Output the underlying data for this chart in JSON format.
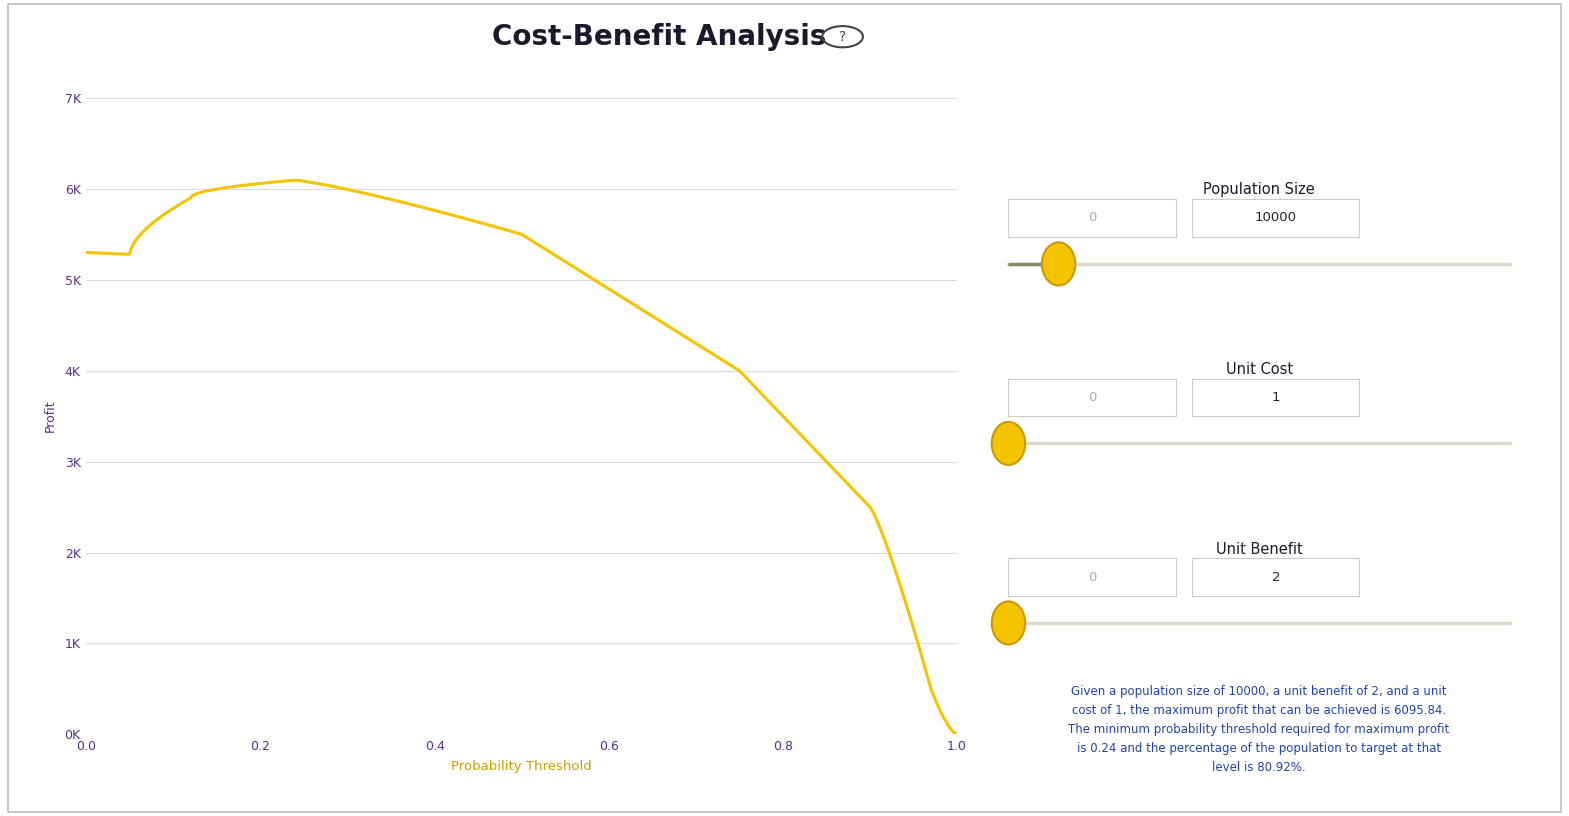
{
  "title": "Cost-Benefit Analysis",
  "title_fontsize": 20,
  "title_fontweight": "bold",
  "title_color": "#1a1a2e",
  "background_color": "#ffffff",
  "plot_bg_color": "#ffffff",
  "line_color": "#f5c400",
  "line_width": 2.2,
  "xlabel": "Probability Threshold",
  "ylabel": "Profit",
  "xlabel_color": "#c8a000",
  "ylabel_color": "#5b2d8e",
  "tick_color": "#5b2d8e",
  "tick_fontsize": 9,
  "grid_color": "#d8d8d8",
  "xlim": [
    0.0,
    1.0
  ],
  "ylim": [
    0,
    7000
  ],
  "yticks": [
    0,
    1000,
    2000,
    3000,
    4000,
    5000,
    6000,
    7000
  ],
  "ytick_labels": [
    "0K",
    "1K",
    "2K",
    "3K",
    "4K",
    "5K",
    "6K",
    "7K"
  ],
  "xticks": [
    0.0,
    0.2,
    0.4,
    0.6,
    0.8,
    1.0
  ],
  "population_size": 10000,
  "unit_cost": 1,
  "unit_benefit": 2,
  "max_profit": 6095.84,
  "optimal_threshold": 0.24,
  "target_pct": 80.92,
  "slider_track_color": "#ddd8cc",
  "slider_knob_color": "#f5c400",
  "slider_knob_edge": "#c89a00",
  "label_color": "#1a1a2e",
  "input_border_color": "#cccccc",
  "input_bg_color": "#ffffff",
  "annotation_color": "#2244aa",
  "annotation_fontsize": 8.5,
  "border_color": "#bbbbbb"
}
